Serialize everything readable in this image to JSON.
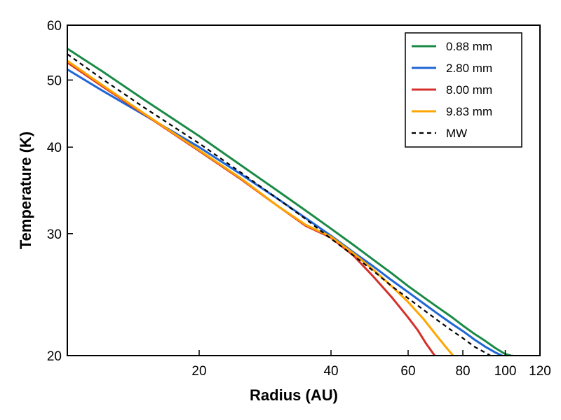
{
  "chart_data": {
    "type": "line",
    "title": "",
    "xlabel": "Radius  (AU)",
    "ylabel": "Temperature (K)",
    "xscale": "log",
    "yscale": "log",
    "xlim": [
      10,
      120
    ],
    "ylim": [
      20,
      60
    ],
    "xticks": [
      20,
      40,
      60,
      80,
      100,
      120
    ],
    "xtick_labels": [
      "20",
      "40",
      "60",
      "80",
      "100",
      "120"
    ],
    "yticks": [
      20,
      30,
      40,
      50,
      60
    ],
    "ytick_labels": [
      "20",
      "30",
      "40",
      "50",
      "60"
    ],
    "grid": false,
    "legend_position": "top-right",
    "series": [
      {
        "name": "0.88 mm",
        "color": "#1a8a46",
        "dash": "solid",
        "x": [
          10,
          12,
          15,
          20,
          25,
          30,
          35,
          40,
          45,
          50,
          55,
          60,
          65,
          70,
          75,
          80,
          85,
          90,
          95,
          100,
          103
        ],
        "y": [
          55.5,
          51.5,
          46.8,
          41.5,
          37.6,
          34.7,
          32.4,
          30.5,
          28.9,
          27.5,
          26.3,
          25.2,
          24.3,
          23.5,
          22.8,
          22.1,
          21.5,
          21.0,
          20.5,
          20.1,
          20.0
        ]
      },
      {
        "name": "2.80 mm",
        "color": "#1f66d6",
        "dash": "solid",
        "x": [
          10,
          12,
          15,
          20,
          25,
          30,
          35,
          40,
          45,
          50,
          55,
          60,
          65,
          70,
          75,
          80,
          85,
          90,
          95,
          100,
          104
        ],
        "y": [
          51.8,
          48.3,
          44.5,
          40.0,
          36.5,
          33.8,
          31.6,
          29.8,
          28.2,
          26.9,
          25.7,
          24.7,
          23.8,
          23.0,
          22.3,
          21.7,
          21.1,
          20.6,
          20.2,
          19.9,
          20.0
        ]
      },
      {
        "name": "8.00 mm",
        "color": "#d6302a",
        "dash": "solid",
        "x": [
          10,
          12,
          15,
          20,
          25,
          30,
          35,
          40,
          45,
          50,
          55,
          60,
          63,
          66,
          69
        ],
        "y": [
          53.0,
          49.0,
          44.6,
          39.5,
          35.9,
          33.0,
          30.8,
          29.6,
          27.9,
          26.0,
          24.3,
          22.7,
          21.8,
          20.8,
          20.0
        ]
      },
      {
        "name": "9.83 mm",
        "color": "#ffa500",
        "dash": "solid",
        "x": [
          10,
          12,
          15,
          20,
          25,
          30,
          35,
          40,
          45,
          50,
          55,
          60,
          65,
          70,
          74,
          76
        ],
        "y": [
          53.3,
          49.2,
          44.7,
          39.6,
          36.0,
          33.0,
          30.9,
          29.7,
          28.1,
          26.6,
          25.2,
          23.9,
          22.6,
          21.3,
          20.4,
          20.0
        ]
      },
      {
        "name": "MW",
        "color": "#000000",
        "dash": "dashed",
        "x": [
          10,
          12,
          15,
          20,
          25,
          30,
          35,
          40,
          45,
          50,
          55,
          60,
          65,
          70,
          75,
          80,
          85,
          90,
          95
        ],
        "y": [
          54.5,
          50.2,
          45.6,
          40.5,
          36.7,
          33.8,
          31.5,
          29.5,
          27.9,
          26.5,
          25.2,
          24.2,
          23.3,
          22.5,
          21.8,
          21.2,
          20.6,
          20.2,
          19.8
        ]
      }
    ]
  }
}
